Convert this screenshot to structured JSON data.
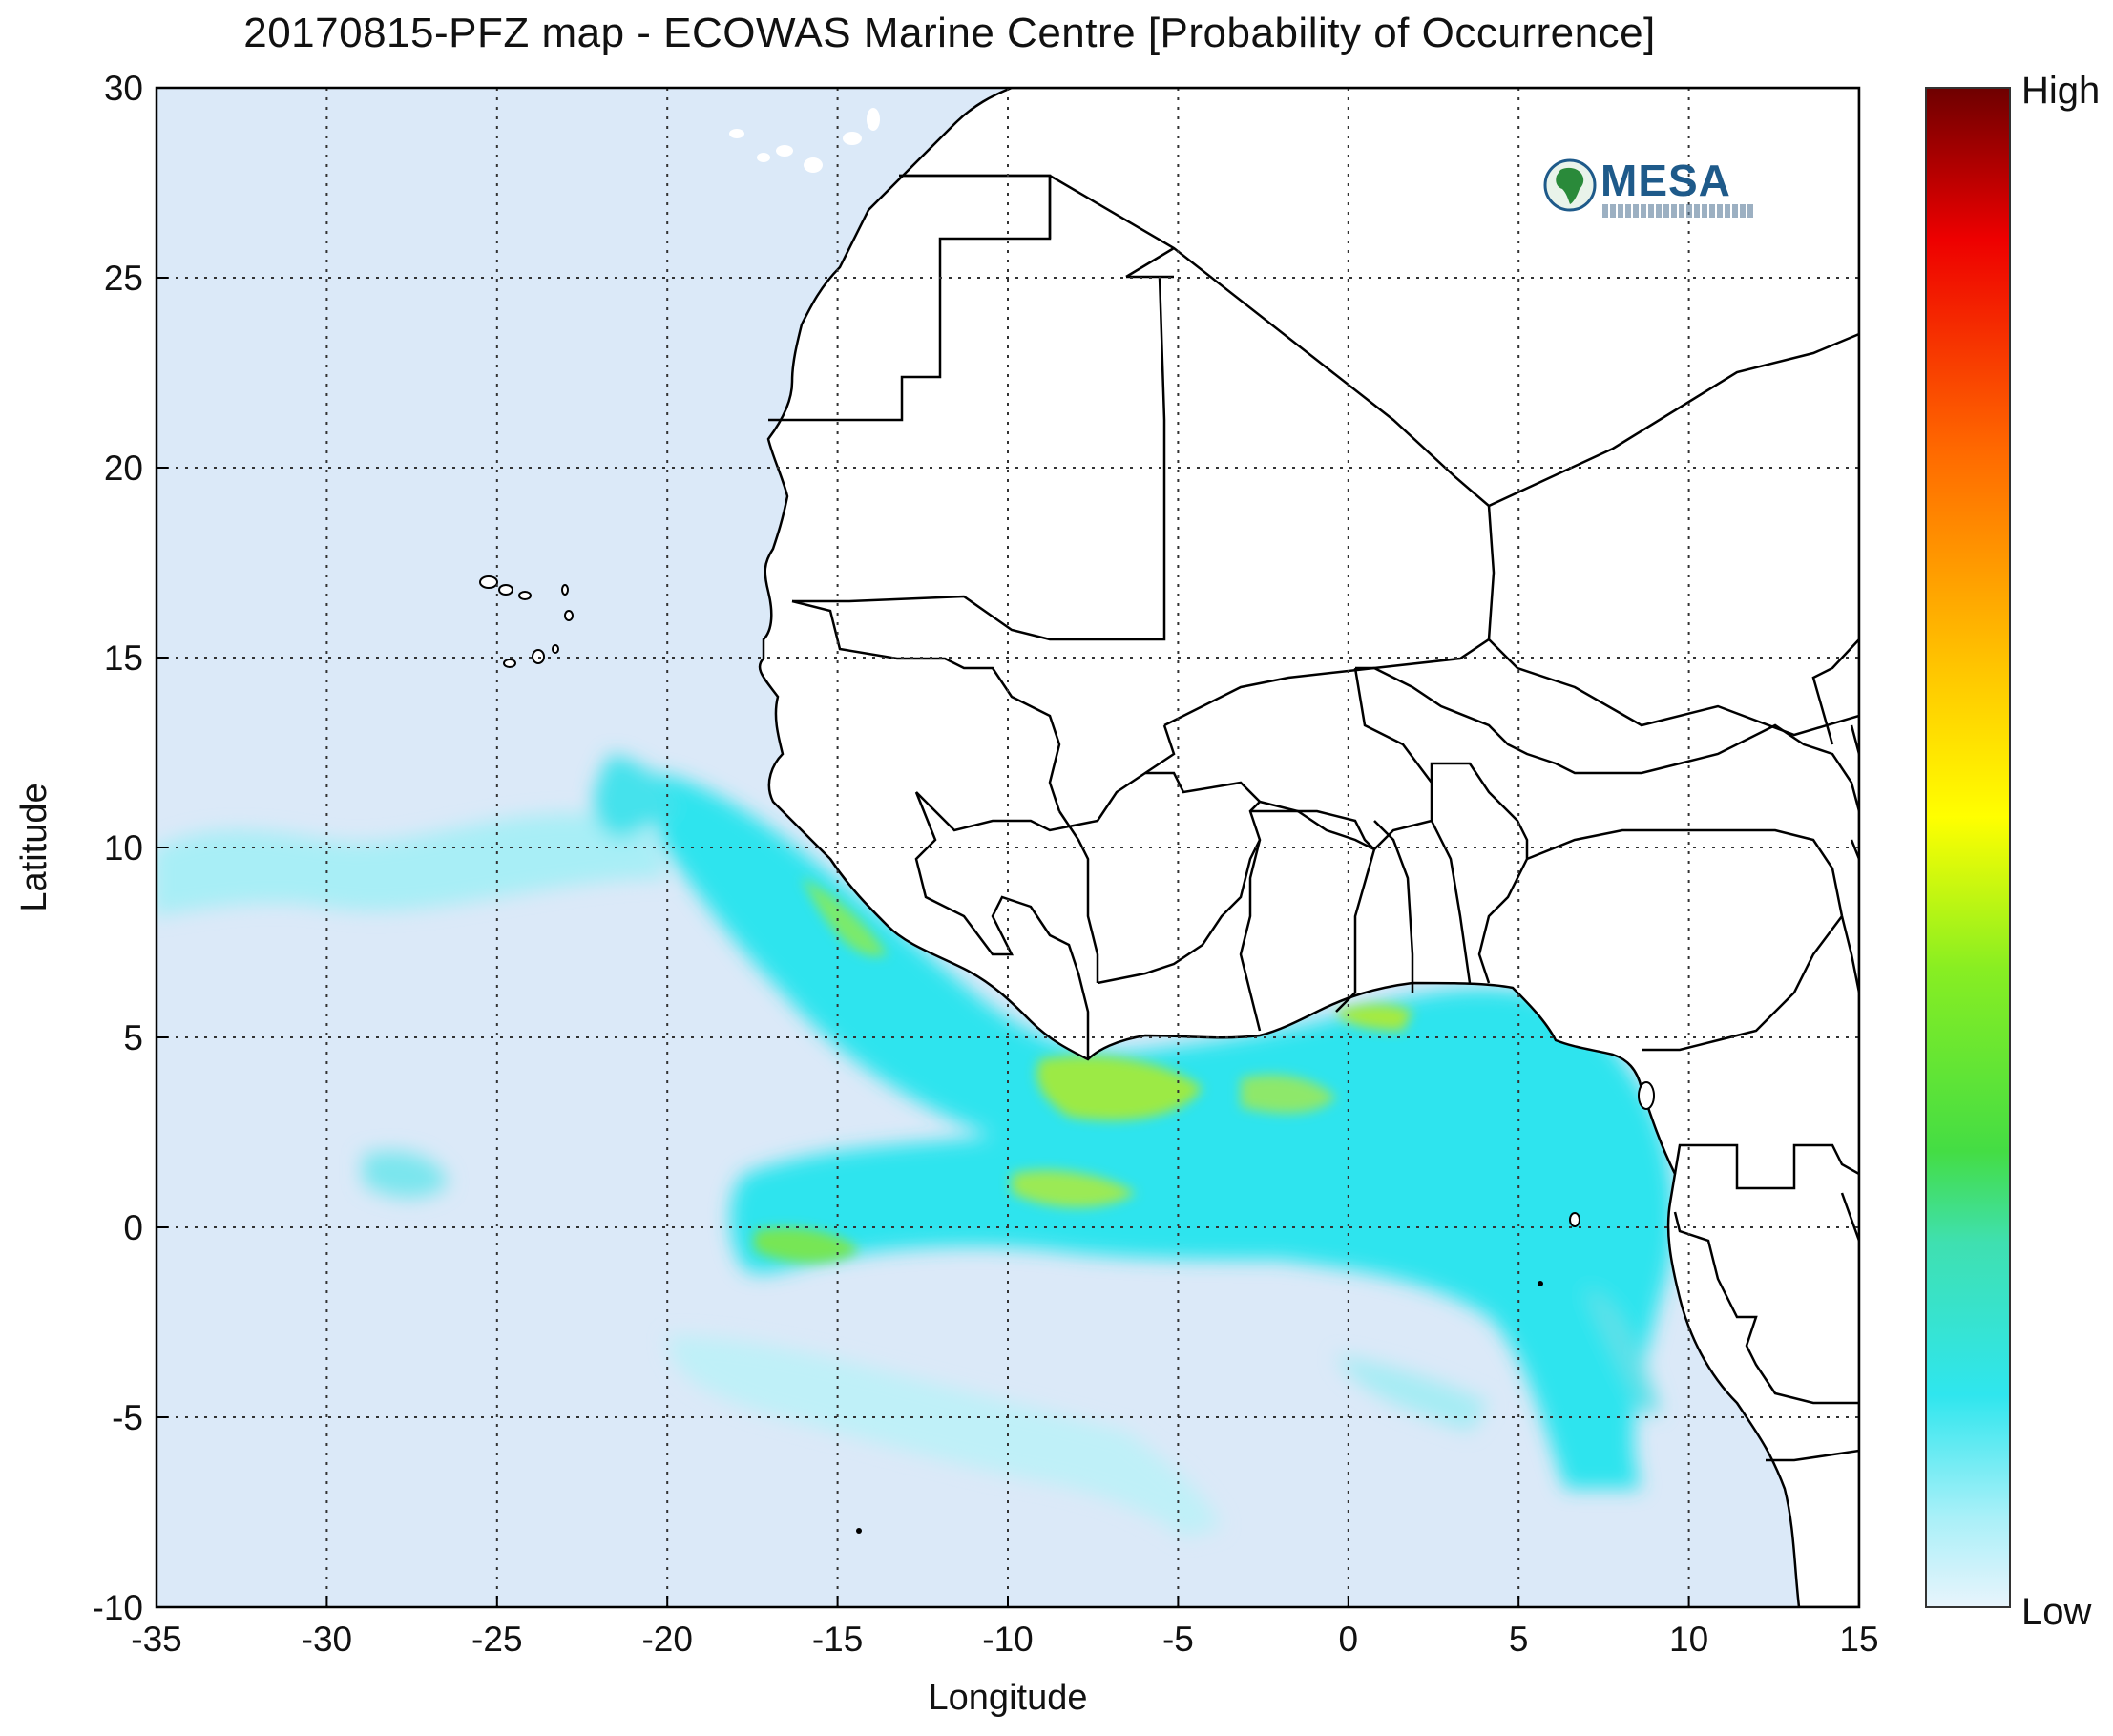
{
  "title": "20170815-PFZ map - ECOWAS Marine Centre [Probability of Occurrence]",
  "logo": {
    "text": "MESA",
    "icon": "africa-globe-icon"
  },
  "colors": {
    "ocean": "#dbe9f8",
    "land": "#ffffff",
    "border": "#000000",
    "low_cyan": "#a8f0f8",
    "mid_cyan": "#2fe0e8",
    "green": "#7ee85c",
    "yellow": "#ffff00",
    "red": "#ff1a00",
    "dark_red": "#7a0000"
  },
  "chart_data": {
    "type": "heatmap",
    "title": "20170815-PFZ map - ECOWAS Marine Centre [Probability of Occurrence]",
    "xlabel": "Longitude",
    "ylabel": "Latitude",
    "xlim": [
      -35,
      15
    ],
    "ylim": [
      -10,
      30
    ],
    "xticks": [
      "-35",
      "-30",
      "-25",
      "-20",
      "-15",
      "-10",
      "-5",
      "0",
      "5",
      "10",
      "15"
    ],
    "yticks": [
      "30",
      "25",
      "20",
      "15",
      "10",
      "5",
      "0",
      "-5",
      "-10"
    ],
    "grid": true,
    "colorbar": {
      "high_label": "High",
      "low_label": "Low"
    }
  }
}
